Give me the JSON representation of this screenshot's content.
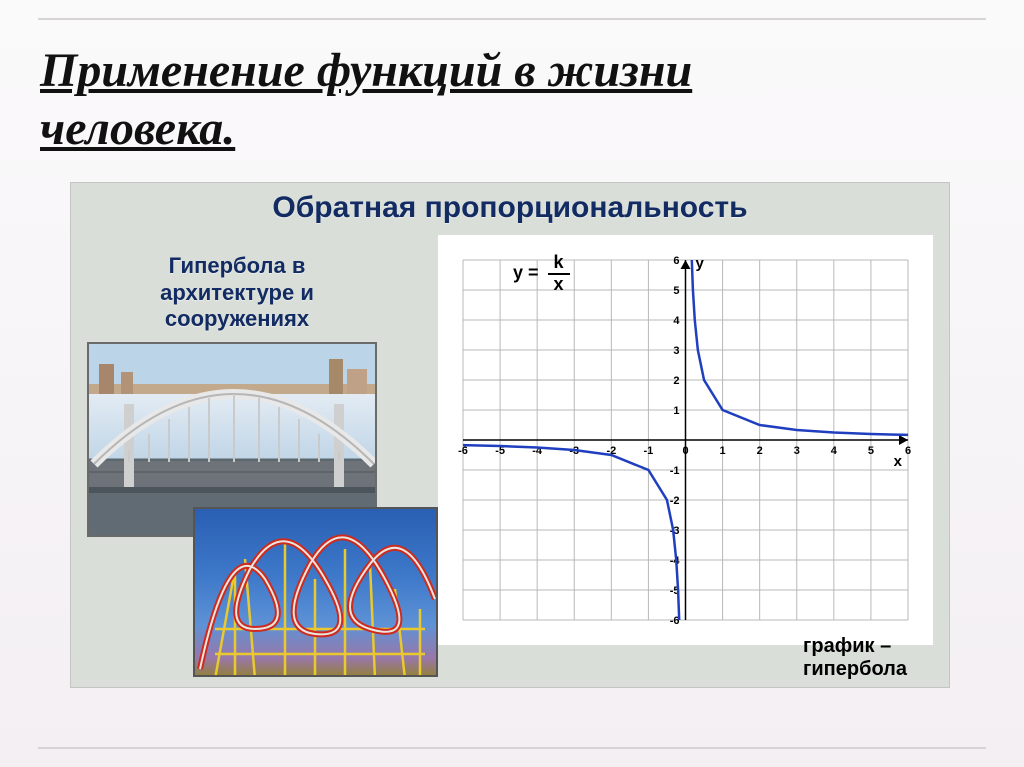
{
  "title": {
    "line1": "Применение функций в жизни",
    "line2": "человека."
  },
  "panel": {
    "heading": "Обратная пропорциональность",
    "subheading_l1": "Гипербола в",
    "subheading_l2": "архитектуре и",
    "subheading_l3": "сооружениях",
    "caption_l1": "график –",
    "caption_l2": "гипербола"
  },
  "formula": {
    "lhs": "y =",
    "num": "k",
    "den": "x"
  },
  "chart": {
    "type": "line",
    "background_color": "#ffffff",
    "grid_color": "#b8b8b8",
    "axis_color": "#000000",
    "curve_color": "#1f3fbf",
    "curve_width": 2.5,
    "xlim": [
      -6,
      6
    ],
    "ylim": [
      -6,
      6
    ],
    "xtick_step": 1,
    "ytick_step": 1,
    "x_label": "x",
    "y_label": "y",
    "xticks": [
      -6,
      -5,
      -4,
      -3,
      -2,
      -1,
      0,
      1,
      2,
      3,
      4,
      5,
      6
    ],
    "yticks": [
      -6,
      -5,
      -4,
      -3,
      -2,
      -1,
      1,
      2,
      3,
      4,
      5,
      6
    ],
    "series": [
      {
        "name": "branch_pos",
        "points": [
          [
            0.17,
            6
          ],
          [
            0.2,
            5
          ],
          [
            0.25,
            4
          ],
          [
            0.333,
            3
          ],
          [
            0.5,
            2
          ],
          [
            1,
            1
          ],
          [
            2,
            0.5
          ],
          [
            3,
            0.333
          ],
          [
            4,
            0.25
          ],
          [
            5,
            0.2
          ],
          [
            6,
            0.17
          ]
        ]
      },
      {
        "name": "branch_neg",
        "points": [
          [
            -0.17,
            -6
          ],
          [
            -0.2,
            -5
          ],
          [
            -0.25,
            -4
          ],
          [
            -0.333,
            -3
          ],
          [
            -0.5,
            -2
          ],
          [
            -1,
            -1
          ],
          [
            -2,
            -0.5
          ],
          [
            -3,
            -0.333
          ],
          [
            -4,
            -0.25
          ],
          [
            -5,
            -0.2
          ],
          [
            -6,
            -0.17
          ]
        ]
      }
    ]
  },
  "bridge": {
    "sky_top": "#bcd4e8",
    "water": "#c1d6e7",
    "road": "#6d7378",
    "arch_color": "#e8e8e8",
    "pylon_color": "#cfcfcf",
    "hanger_color": "#cacaca"
  },
  "coaster": {
    "track_color": "#cf2a1e",
    "support_color": "#e9c92d",
    "sky_top": "#2a5fb3",
    "sky_bottom": "#5e92d6"
  }
}
